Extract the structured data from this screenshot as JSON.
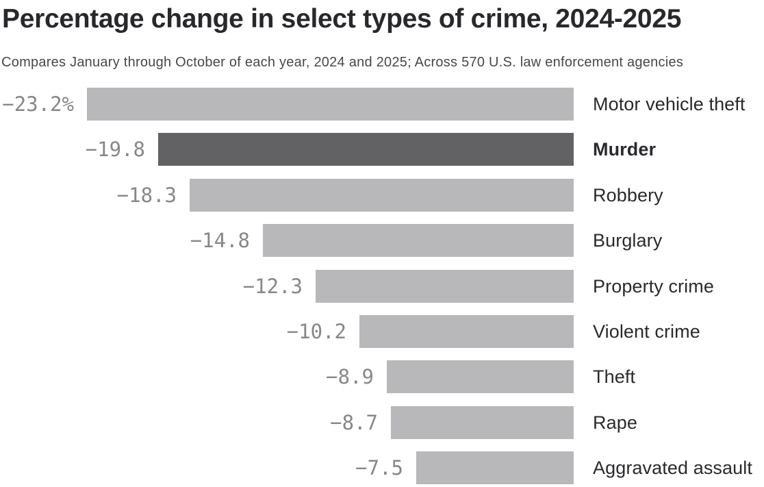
{
  "header": {
    "title": "Percentage change in select types of crime, 2024-2025",
    "subtitle": "Compares January through October of each year, 2024 and 2025; Across 570 U.S. law enforcement agencies"
  },
  "colors": {
    "background": "#ffffff",
    "bar_default": "#b8b8ba",
    "bar_highlight": "#626264",
    "value_text": "#87878a",
    "category_text": "#2a2a2e",
    "title_text": "#28282c",
    "subtitle_text": "#48484c"
  },
  "chart_data": {
    "type": "bar",
    "orientation": "horizontal",
    "bars_right_aligned": true,
    "title": "Percentage change in select types of crime, 2024-2025",
    "subtitle": "Compares January through October of each year, 2024 and 2025; Across 570 U.S. law enforcement agencies",
    "unit": "percent change",
    "xlim": [
      -23.2,
      0
    ],
    "grid": false,
    "legend": false,
    "categories": [
      "Motor vehicle theft",
      "Murder",
      "Robbery",
      "Burglary",
      "Property crime",
      "Violent crime",
      "Theft",
      "Rape",
      "Aggravated assault"
    ],
    "values": [
      -23.2,
      -19.8,
      -18.3,
      -14.8,
      -12.3,
      -10.2,
      -8.9,
      -8.7,
      -7.5
    ],
    "value_labels": [
      "-23.2%",
      "-19.8",
      "-18.3",
      "-14.8",
      "-12.3",
      "-10.2",
      "-8.9",
      "-8.7",
      "-7.5"
    ],
    "highlighted_category": "Murder"
  }
}
